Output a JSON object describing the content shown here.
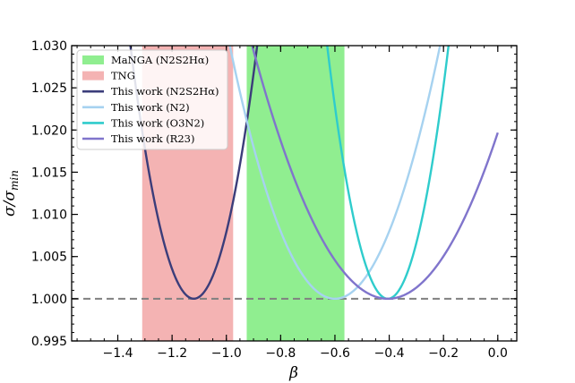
{
  "chart_data": {
    "type": "line",
    "title": "",
    "xlabel": "β",
    "ylabel_main": "σ/σ",
    "ylabel_sub": "min",
    "xlim": [
      -1.57,
      0.07
    ],
    "ylim": [
      0.995,
      1.03
    ],
    "xticks": [
      -1.4,
      -1.2,
      -1.0,
      -0.8,
      -0.6,
      -0.4,
      -0.2,
      0.0
    ],
    "xtick_labels": [
      "−1.4",
      "−1.2",
      "−1.0",
      "−0.8",
      "−0.6",
      "−0.4",
      "−0.2",
      "0.0"
    ],
    "yticks": [
      0.995,
      1.0,
      1.005,
      1.01,
      1.015,
      1.02,
      1.025,
      1.03
    ],
    "ytick_labels": [
      "0.995",
      "1.000",
      "1.005",
      "1.010",
      "1.015",
      "1.020",
      "1.025",
      "1.030"
    ],
    "reference_line": {
      "y": 1.0,
      "color": "#808080",
      "style": "dashed"
    },
    "bands": [
      {
        "name": "MaNGA (N2S2Hα)",
        "x_start": -0.925,
        "x_end": -0.565,
        "color": "#90ee90"
      },
      {
        "name": "TNG",
        "x_start": -1.31,
        "x_end": -0.975,
        "color": "#f4b3b3"
      }
    ],
    "series": [
      {
        "name": "This work (N2S2Hα)",
        "color": "#3b3d7a",
        "vertex_x": -1.12,
        "curvature": 0.55,
        "x_range": [
          -1.51,
          -0.5
        ]
      },
      {
        "name": "This work (N2)",
        "color": "#a6d2f0",
        "vertex_x": -0.6,
        "curvature": 0.2,
        "x_range": [
          -1.04,
          -0.2
        ]
      },
      {
        "name": "This work (O3N2)",
        "color": "#2fcccc",
        "vertex_x": -0.405,
        "curvature": 0.6,
        "x_range": [
          -0.63,
          -0.02
        ]
      },
      {
        "name": "This work (R23)",
        "color": "#8075cc",
        "vertex_x": -0.405,
        "curvature": 0.12,
        "x_range": [
          -1.08,
          0.0
        ]
      }
    ]
  }
}
